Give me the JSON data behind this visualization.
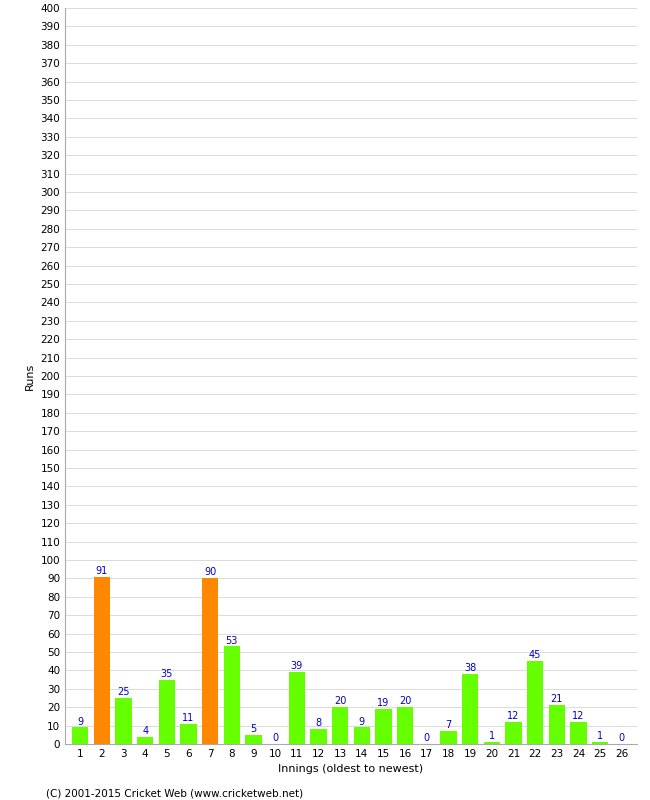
{
  "values": [
    9,
    91,
    25,
    4,
    35,
    11,
    90,
    53,
    5,
    0,
    39,
    8,
    20,
    9,
    19,
    20,
    0,
    7,
    38,
    1,
    12,
    45,
    21,
    12,
    1,
    0
  ],
  "innings": [
    1,
    2,
    3,
    4,
    5,
    6,
    7,
    8,
    9,
    10,
    11,
    12,
    13,
    14,
    15,
    16,
    17,
    18,
    19,
    20,
    21,
    22,
    23,
    24,
    25,
    26
  ],
  "orange_indices": [
    1,
    6
  ],
  "bar_color_normal": "#66ff00",
  "bar_color_highlight": "#ff8800",
  "label_color": "#0000cc",
  "xlabel": "Innings (oldest to newest)",
  "ylabel": "Runs",
  "ylim": [
    0,
    400
  ],
  "ytick_step": 10,
  "background_color": "#ffffff",
  "grid_color": "#cccccc",
  "footer": "(C) 2001-2015 Cricket Web (www.cricketweb.net)",
  "label_fontsize": 7.0,
  "axis_fontsize": 7.5,
  "xlabel_fontsize": 8,
  "ylabel_fontsize": 8
}
